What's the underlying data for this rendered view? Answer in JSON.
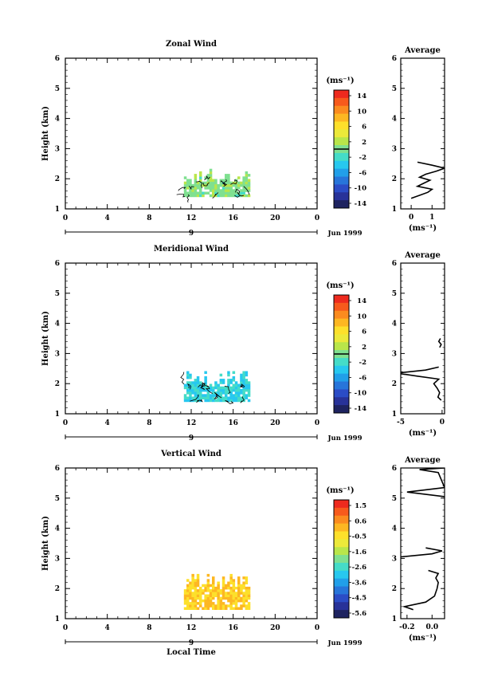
{
  "chart_data": [
    {
      "type": "heatmap",
      "title": "Zonal Wind",
      "ylabel": "Height (km)",
      "xlabel": "",
      "xlim": [
        0,
        24
      ],
      "ylim": [
        1,
        6
      ],
      "x_ticks": [
        "0",
        "4",
        "8",
        "12",
        "16",
        "20",
        "0"
      ],
      "y_ticks": [
        "1",
        "2",
        "3",
        "4",
        "5",
        "6"
      ],
      "date_label": "9",
      "month_label": "Jun 1999",
      "colorbar": {
        "unit": "(ms⁻¹)",
        "labels": [
          "14",
          "10",
          "6",
          "2",
          "-2",
          "-6",
          "-10",
          "-14"
        ],
        "zero_line_value": 0
      },
      "data_region": {
        "x": [
          11.3,
          17.6
        ],
        "y": [
          1.4,
          2.3
        ],
        "dominant_value": 0.5
      },
      "profile": {
        "title": "Average",
        "xlabel": "(ms⁻¹)",
        "x_ticks": [
          "0",
          "1"
        ],
        "xlim": [
          -0.5,
          1.6
        ],
        "ylim": [
          1,
          6
        ],
        "y_ticks": [
          "1",
          "2",
          "3",
          "4",
          "5",
          "6"
        ],
        "points": [
          [
            0.0,
            1.35
          ],
          [
            0.4,
            1.45
          ],
          [
            0.8,
            1.55
          ],
          [
            1.0,
            1.65
          ],
          [
            0.3,
            1.75
          ],
          [
            0.6,
            1.85
          ],
          [
            0.9,
            1.95
          ],
          [
            0.4,
            2.05
          ],
          [
            0.7,
            2.15
          ],
          [
            1.2,
            2.25
          ],
          [
            1.6,
            2.35
          ],
          [
            1.0,
            2.45
          ],
          [
            0.3,
            2.55
          ]
        ]
      }
    },
    {
      "type": "heatmap",
      "title": "Meridional Wind",
      "ylabel": "Height (km)",
      "xlabel": "",
      "xlim": [
        0,
        24
      ],
      "ylim": [
        1,
        6
      ],
      "x_ticks": [
        "0",
        "4",
        "8",
        "12",
        "16",
        "20",
        "0"
      ],
      "y_ticks": [
        "1",
        "2",
        "3",
        "4",
        "5",
        "6"
      ],
      "date_label": "9",
      "month_label": "Jun 1999",
      "colorbar": {
        "unit": "(ms⁻¹)",
        "labels": [
          "14",
          "10",
          "6",
          "2",
          "-2",
          "-6",
          "-10",
          "-14"
        ],
        "zero_line_value": 0
      },
      "data_region": {
        "x": [
          11.3,
          17.6
        ],
        "y": [
          1.4,
          2.4
        ],
        "dominant_value": -3
      },
      "profile": {
        "title": "Average",
        "xlabel": "(ms⁻¹)",
        "x_ticks": [
          "-5",
          "0"
        ],
        "xlim": [
          -5,
          0.3
        ],
        "ylim": [
          1,
          6
        ],
        "y_ticks": [
          "1",
          "2",
          "3",
          "4",
          "5",
          "6"
        ],
        "points": [
          [
            -0.1,
            1.45
          ],
          [
            -0.5,
            1.55
          ],
          [
            -0.3,
            1.7
          ],
          [
            -0.6,
            1.85
          ],
          [
            -1.0,
            2.0
          ],
          [
            -0.4,
            2.15
          ],
          [
            -3.0,
            2.25
          ],
          [
            -5.5,
            2.35
          ],
          [
            -2.0,
            2.45
          ],
          [
            -0.4,
            2.55
          ]
        ],
        "points_upper": [
          [
            -0.3,
            3.2
          ],
          [
            -0.1,
            3.3
          ],
          [
            -0.4,
            3.4
          ],
          [
            -0.2,
            3.5
          ]
        ]
      }
    },
    {
      "type": "heatmap",
      "title": "Vertical Wind",
      "ylabel": "Height (km)",
      "xlabel": "Local Time",
      "xlim": [
        0,
        24
      ],
      "ylim": [
        1,
        6
      ],
      "x_ticks": [
        "0",
        "4",
        "8",
        "12",
        "16",
        "20",
        "0"
      ],
      "y_ticks": [
        "1",
        "2",
        "3",
        "4",
        "5",
        "6"
      ],
      "date_label": "9",
      "month_label": "Jun 1999",
      "colorbar": {
        "unit": "(ms⁻¹)",
        "labels": [
          "1.5",
          "0.6",
          "-0.5",
          "-1.6",
          "-2.6",
          "-3.6",
          "-4.5",
          "-5.6"
        ],
        "zero_line_value": null
      },
      "data_region": {
        "x": [
          11.3,
          17.6
        ],
        "y": [
          1.3,
          2.5
        ],
        "dominant_value": -0.3
      },
      "profile": {
        "title": "Average",
        "xlabel": "(ms⁻¹)",
        "x_ticks": [
          "-0.2",
          "0.0"
        ],
        "xlim": [
          -0.25,
          0.1
        ],
        "ylim": [
          1,
          6
        ],
        "y_ticks": [
          "1",
          "2",
          "3",
          "4",
          "5",
          "6"
        ],
        "points": [
          [
            -0.15,
            1.3
          ],
          [
            -0.22,
            1.4
          ],
          [
            -0.05,
            1.55
          ],
          [
            0.02,
            1.75
          ],
          [
            0.04,
            2.0
          ],
          [
            0.05,
            2.2
          ],
          [
            0.03,
            2.35
          ],
          [
            0.05,
            2.5
          ],
          [
            -0.03,
            2.6
          ]
        ],
        "points_upper": [
          [
            -0.25,
            3.05
          ],
          [
            0.0,
            3.15
          ],
          [
            0.08,
            3.25
          ],
          [
            -0.05,
            3.35
          ]
        ],
        "points_top": [
          [
            0.1,
            5.05
          ],
          [
            -0.2,
            5.2
          ],
          [
            0.1,
            5.35
          ],
          [
            0.05,
            5.85
          ],
          [
            -0.1,
            5.95
          ],
          [
            0.1,
            6.0
          ]
        ]
      }
    }
  ]
}
